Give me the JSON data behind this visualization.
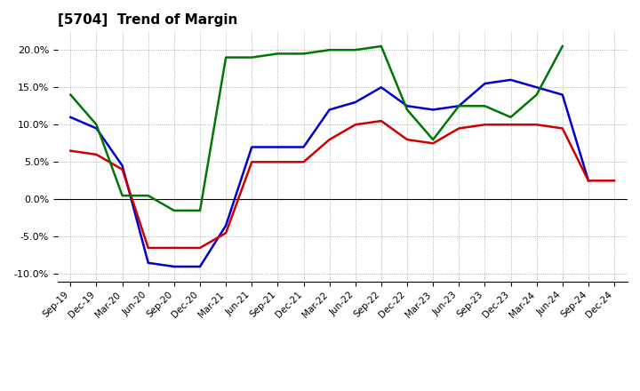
{
  "title": "[5704]  Trend of Margin",
  "labels": [
    "Sep-19",
    "Dec-19",
    "Mar-20",
    "Jun-20",
    "Sep-20",
    "Dec-20",
    "Mar-21",
    "Jun-21",
    "Sep-21",
    "Dec-21",
    "Mar-22",
    "Jun-22",
    "Sep-22",
    "Dec-22",
    "Mar-23",
    "Jun-23",
    "Sep-23",
    "Dec-23",
    "Mar-24",
    "Jun-24",
    "Sep-24",
    "Dec-24"
  ],
  "ordinary_income": [
    11.0,
    9.5,
    4.5,
    -8.5,
    -9.0,
    -9.0,
    -3.5,
    7.0,
    7.0,
    7.0,
    12.0,
    13.0,
    15.0,
    12.5,
    12.0,
    12.5,
    15.5,
    16.0,
    15.0,
    14.0,
    2.5,
    null
  ],
  "net_income": [
    6.5,
    6.0,
    4.0,
    -6.5,
    -6.5,
    -6.5,
    -4.5,
    5.0,
    5.0,
    5.0,
    8.0,
    10.0,
    10.5,
    8.0,
    7.5,
    9.5,
    10.0,
    10.0,
    10.0,
    9.5,
    2.5,
    2.5
  ],
  "operating_cashflow": [
    14.0,
    10.0,
    0.5,
    0.5,
    -1.5,
    -1.5,
    19.0,
    19.0,
    19.5,
    19.5,
    20.0,
    20.0,
    20.5,
    12.0,
    8.0,
    12.5,
    12.5,
    11.0,
    14.0,
    20.5,
    null,
    null
  ],
  "ylim": [
    -11.0,
    22.5
  ],
  "yticks": [
    -10.0,
    -5.0,
    0.0,
    5.0,
    10.0,
    15.0,
    20.0
  ],
  "line_colors": {
    "ordinary_income": "#0000cc",
    "net_income": "#cc0000",
    "operating_cashflow": "#007700"
  },
  "line_width": 1.8,
  "background_color": "#ffffff",
  "grid_color": "#999999",
  "title_fontsize": 11
}
